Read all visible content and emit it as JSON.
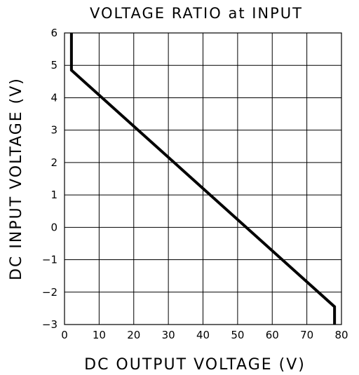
{
  "chart_data": {
    "type": "line",
    "title": "VOLTAGE RATIO at INPUT",
    "xlabel": "DC OUTPUT VOLTAGE (V)",
    "ylabel": "DC INPUT VOLTAGE (V)",
    "xlim": [
      0,
      80
    ],
    "ylim": [
      -3,
      6
    ],
    "xticks": [
      "0",
      "10",
      "20",
      "30",
      "40",
      "50",
      "60",
      "70",
      "80"
    ],
    "yticks": [
      "−3",
      "−2",
      "−1",
      "0",
      "1",
      "2",
      "3",
      "4",
      "5",
      "6"
    ],
    "grid": true,
    "series": [
      {
        "x": [
          2,
          2,
          78,
          78
        ],
        "y": [
          6,
          4.85,
          -2.45,
          -3
        ]
      }
    ]
  }
}
